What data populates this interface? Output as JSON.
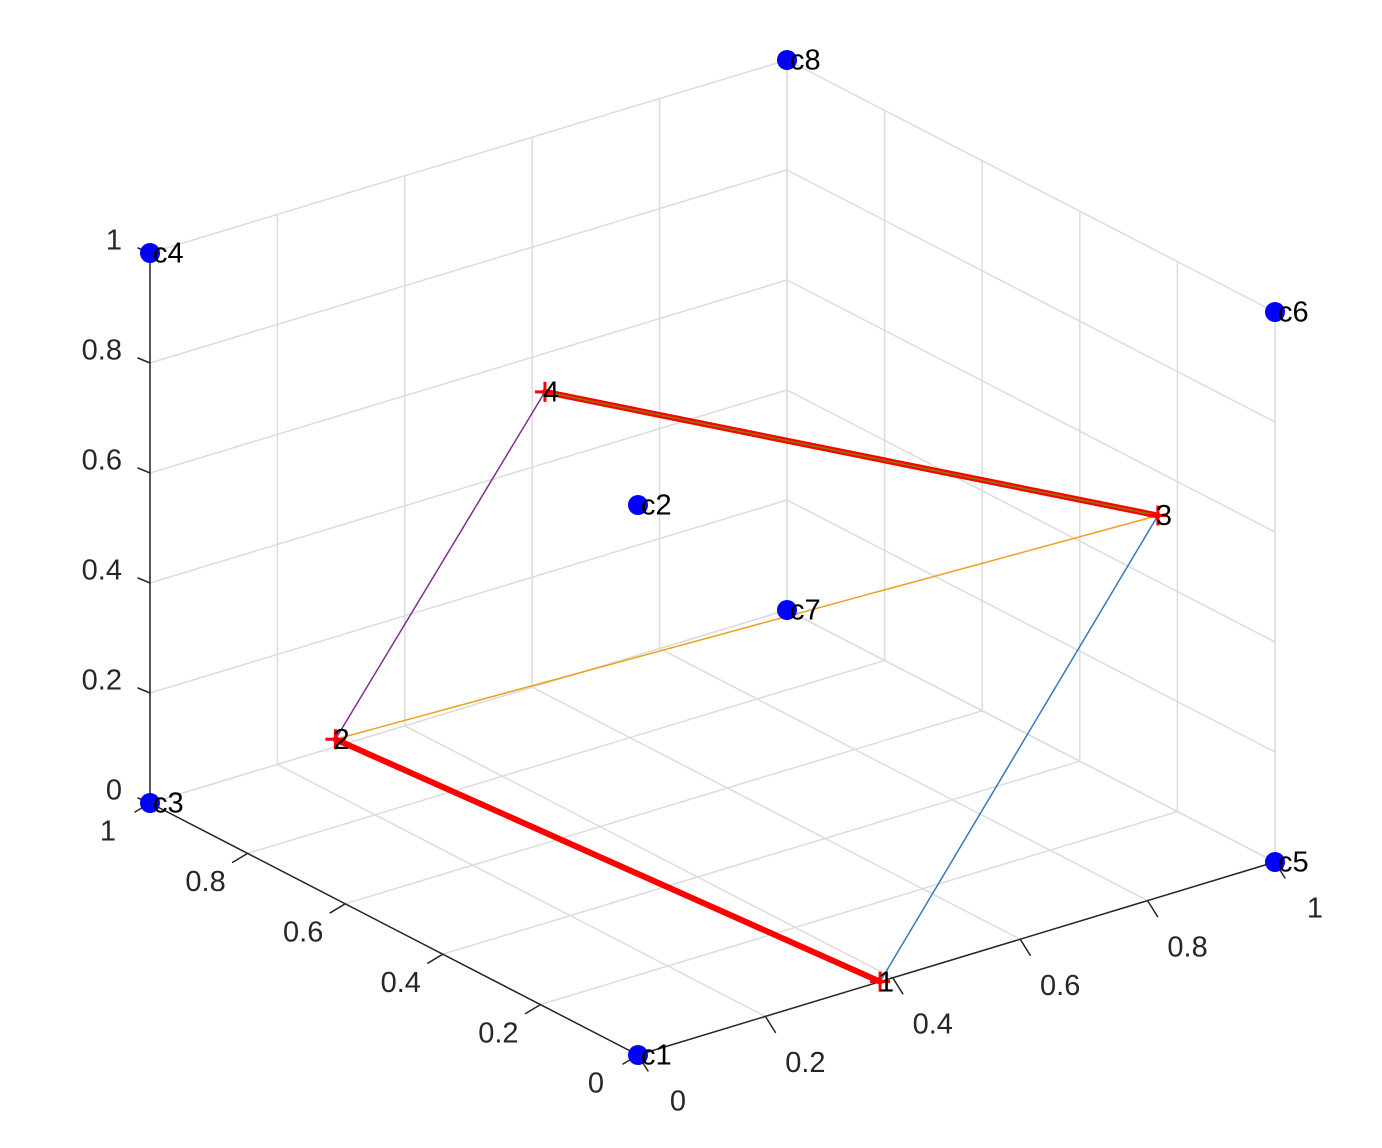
{
  "chart_data": {
    "type": "scatter3d",
    "title": "",
    "xlabel": "",
    "ylabel": "",
    "zlabel": "",
    "xlim": [
      0,
      1
    ],
    "ylim": [
      0,
      1
    ],
    "zlim": [
      0,
      1
    ],
    "grid": true,
    "ticks": {
      "x": [
        "0",
        "0.2",
        "0.4",
        "0.6",
        "0.8",
        "1"
      ],
      "y": [
        "0",
        "0.2",
        "0.4",
        "0.6",
        "0.8",
        "1"
      ],
      "z": [
        "0",
        "0.2",
        "0.4",
        "0.6",
        "0.8",
        "1"
      ]
    },
    "corners": [
      {
        "label": "c1",
        "x": 0,
        "y": 0,
        "z": 0
      },
      {
        "label": "c2",
        "x": 0,
        "y": 0,
        "z": 1
      },
      {
        "label": "c3",
        "x": 0,
        "y": 1,
        "z": 0
      },
      {
        "label": "c4",
        "x": 0,
        "y": 1,
        "z": 1
      },
      {
        "label": "c5",
        "x": 1,
        "y": 0,
        "z": 0
      },
      {
        "label": "c6",
        "x": 1,
        "y": 0,
        "z": 1
      },
      {
        "label": "c7",
        "x": 1,
        "y": 1,
        "z": 0
      },
      {
        "label": "c8",
        "x": 1,
        "y": 1,
        "z": 1
      }
    ],
    "nodes": [
      {
        "label": "1",
        "x": 0.38,
        "y": 0.0,
        "z": 0.0
      },
      {
        "label": "2",
        "x": 0.0,
        "y": 0.62,
        "z": 0.29
      },
      {
        "label": "3",
        "x": 1.0,
        "y": 0.24,
        "z": 0.52
      },
      {
        "label": "4",
        "x": 0.62,
        "y": 1.0,
        "z": 0.53
      }
    ],
    "edges": [
      {
        "from": 1,
        "to": 2,
        "color": "#ff0000",
        "width": 6
      },
      {
        "from": 1,
        "to": 3,
        "color": "#3478bd",
        "width": 1.5
      },
      {
        "from": 2,
        "to": 3,
        "color": "#eda11b",
        "width": 1.5
      },
      {
        "from": 2,
        "to": 4,
        "color": "#7e2f8e",
        "width": 1.5
      },
      {
        "from": 3,
        "to": 4,
        "color": "#ff0000",
        "width": 6,
        "inner_color": "#808000"
      }
    ],
    "corner_color": "#0000ff",
    "node_marker_color": "#ff0000",
    "grid_color": "#dcdcdc",
    "axis_color": "#262626"
  }
}
